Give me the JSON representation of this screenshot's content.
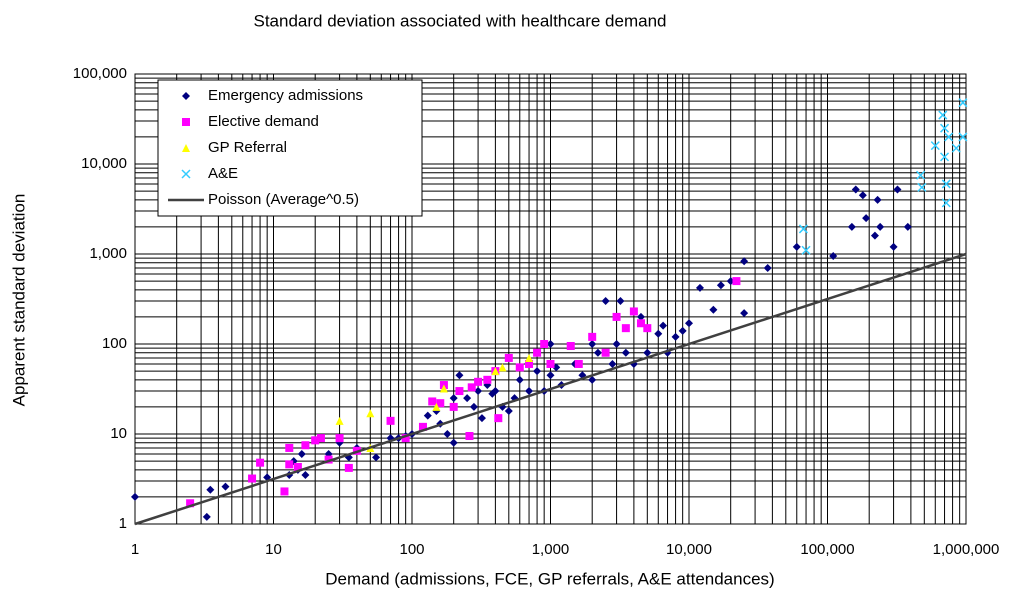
{
  "chart_data": {
    "type": "scatter",
    "title": "Standard deviation associated with healthcare demand",
    "x_label": "Demand (admissions, FCE, GP referrals, A&E attendances)",
    "y_label": "Apparent standard deviation",
    "log_x": true,
    "log_y": true,
    "grid": true,
    "legend": "upper left",
    "xlim": [
      1,
      1000000
    ],
    "ylim": [
      1,
      100000
    ],
    "xticks": [
      1,
      10,
      100,
      {
        "value": 1000,
        "label": "1,000"
      },
      {
        "value": 10000,
        "label": "10,000"
      },
      {
        "value": 100000,
        "label": "100,000"
      },
      {
        "value": 1000000,
        "label": "1,000,000"
      }
    ],
    "yticks": [
      1,
      10,
      100,
      {
        "value": 1000,
        "label": "1,000"
      },
      {
        "value": 10000,
        "label": "10,000"
      },
      {
        "value": 100000,
        "label": "100,000"
      }
    ],
    "series": [
      {
        "name": "Emergency admissions",
        "color": "#000080",
        "marker": "diamond",
        "x": [
          1,
          3.3,
          3.5,
          4.5,
          9,
          13,
          14,
          15,
          17,
          16,
          25,
          30,
          35,
          40,
          55,
          70,
          80,
          90,
          100,
          120,
          130,
          150,
          160,
          180,
          200,
          200,
          220,
          250,
          280,
          300,
          320,
          350,
          380,
          400,
          450,
          500,
          550,
          600,
          700,
          800,
          900,
          1000,
          1000,
          1100,
          1200,
          1500,
          1700,
          2000,
          2000,
          2200,
          2500,
          2800,
          3000,
          3200,
          3500,
          4000,
          4500,
          5000,
          6000,
          6500,
          7000,
          8000,
          9000,
          10000,
          12000,
          15000,
          17000,
          20000,
          25000,
          25000,
          37000,
          60000,
          110000,
          150000,
          160000,
          180000,
          190000,
          220000,
          230000,
          240000,
          300000,
          320000,
          380000
        ],
        "values": [
          2,
          1.2,
          2.4,
          2.6,
          3.3,
          3.5,
          5,
          4,
          3.5,
          6,
          6,
          8,
          5.5,
          7,
          5.5,
          9,
          9,
          9.5,
          10,
          12,
          16,
          18,
          13,
          10,
          8,
          25,
          45,
          25,
          20,
          30,
          15,
          35,
          28,
          30,
          20,
          18,
          25,
          40,
          30,
          50,
          30,
          45,
          100,
          55,
          35,
          60,
          45,
          100,
          40,
          80,
          300,
          60,
          100,
          300,
          80,
          60,
          200,
          80,
          130,
          160,
          80,
          120,
          140,
          170,
          420,
          240,
          450,
          500,
          830,
          220,
          700,
          1200,
          950,
          2000,
          5200,
          4500,
          2500,
          1600,
          4000,
          2000,
          1200,
          5200,
          2000
        ]
      },
      {
        "name": "Elective demand",
        "color": "#ff00ff",
        "marker": "square",
        "x": [
          2.5,
          7,
          8,
          12,
          13,
          13,
          15,
          17,
          20,
          22,
          25,
          30,
          35,
          40,
          70,
          90,
          120,
          140,
          160,
          170,
          200,
          220,
          260,
          270,
          300,
          350,
          400,
          420,
          500,
          600,
          700,
          800,
          900,
          1000,
          1400,
          1600,
          2000,
          2500,
          3000,
          3500,
          4000,
          4500,
          5000,
          22000
        ],
        "values": [
          1.7,
          3.2,
          4.8,
          2.3,
          4.6,
          7,
          4.3,
          7.5,
          8.5,
          9,
          5.2,
          9,
          4.2,
          6.5,
          14,
          9,
          12,
          23,
          22,
          35,
          20,
          30,
          9.5,
          33,
          38,
          40,
          50,
          15,
          70,
          55,
          60,
          80,
          100,
          60,
          95,
          60,
          120,
          80,
          200,
          150,
          230,
          170,
          150,
          500
        ]
      },
      {
        "name": "GP Referral",
        "color": "#ffff00",
        "marker": "triangle",
        "x": [
          30,
          50,
          50,
          150,
          170,
          400,
          450,
          700
        ],
        "values": [
          14,
          17,
          7,
          20,
          32,
          50,
          55,
          70
        ]
      },
      {
        "name": "A&E",
        "color": "#33ccff",
        "marker": "cross",
        "x": [
          67000,
          70000,
          470000,
          480000,
          600000,
          680000,
          700000,
          700000,
          720000,
          720000,
          750000,
          850000,
          950000,
          950000
        ],
        "values": [
          1900,
          1100,
          7500,
          5500,
          16000,
          35000,
          25000,
          12000,
          6000,
          3700,
          20000,
          15000,
          48000,
          20000
        ]
      },
      {
        "name": "Poisson (Average^0.5)",
        "color": "#404040",
        "marker": "line",
        "x": [
          1,
          1000000
        ],
        "values": [
          1,
          1000
        ]
      }
    ]
  }
}
